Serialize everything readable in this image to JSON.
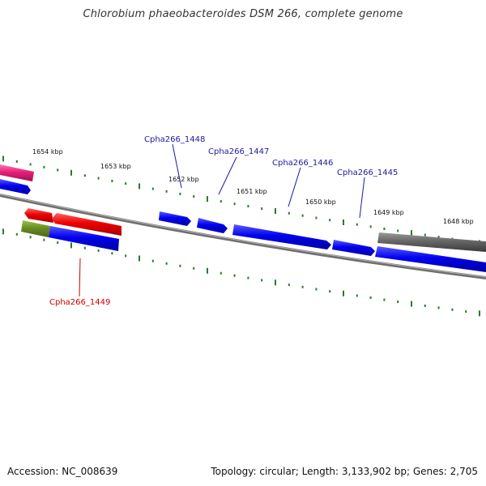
{
  "title": "Chlorobium phaeobacteroides DSM 266, complete genome",
  "footer": {
    "accession": "Accession: NC_008639",
    "summary": "Topology: circular; Length: 3,133,902 bp; Genes: 2,705"
  },
  "colors": {
    "forward_gene": "#0000ee",
    "reverse_gene": "#ee0000",
    "pseudo_gene": "#666666",
    "rna_gene": "#e8207a",
    "misc_feature": "#6b8e23",
    "backbone": "#777777",
    "ticks": "#2a7a2a",
    "label_forward": "#1a1aa0",
    "label_reverse": "#cc0000"
  },
  "kbp_ticks": [
    "1654 kbp",
    "1653 kbp",
    "1652 kbp",
    "1651 kbp",
    "1650 kbp",
    "1649 kbp",
    "1648 kbp"
  ],
  "gene_labels": [
    {
      "name": "Cpha266_1448",
      "strand": "forward"
    },
    {
      "name": "Cpha266_1447",
      "strand": "forward"
    },
    {
      "name": "Cpha266_1446",
      "strand": "forward"
    },
    {
      "name": "Cpha266_1445",
      "strand": "forward"
    },
    {
      "name": "Cpha266_1449",
      "strand": "reverse"
    }
  ]
}
